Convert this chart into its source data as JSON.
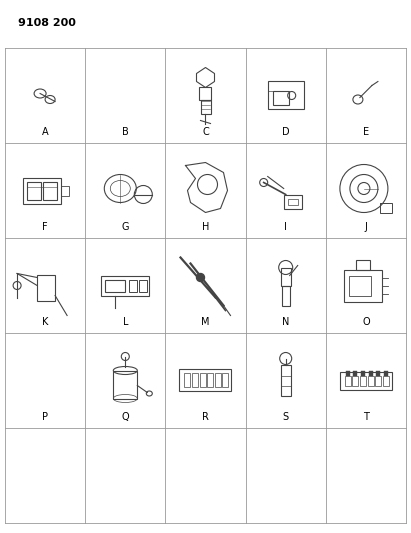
{
  "title": "9108 200",
  "background_color": "#ffffff",
  "grid_color": "#999999",
  "text_color": "#000000",
  "figsize": [
    4.11,
    5.33
  ],
  "dpi": 100,
  "label_fontsize": 7,
  "title_fontsize": 8,
  "component_color": "#444444",
  "grid_lw": 0.6,
  "n_cols": 5,
  "n_rows": 5,
  "col_labels": [
    "A",
    "B",
    "C",
    "D",
    "E",
    "F",
    "G",
    "H",
    "I",
    "J",
    "K",
    "L",
    "M",
    "N",
    "O",
    "P",
    "Q",
    "R",
    "S",
    "T"
  ]
}
